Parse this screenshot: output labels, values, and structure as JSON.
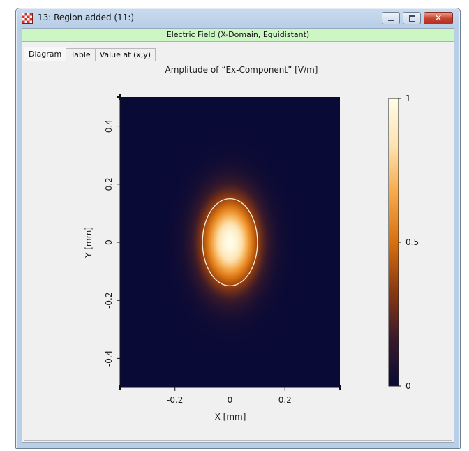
{
  "window": {
    "title": "13: Region added (11:)",
    "controls": {
      "minimize": "minimize-icon",
      "maximize": "maximize-icon",
      "close": "close-icon"
    },
    "close_glyph": "✕"
  },
  "header": {
    "text": "Electric Field (X-Domain, Equidistant)",
    "color": "#ccf7c4"
  },
  "tabs": [
    {
      "label": "Diagram",
      "active": true
    },
    {
      "label": "Table",
      "active": false
    },
    {
      "label": "Value at (x,y)",
      "active": false
    }
  ],
  "chart_data": {
    "type": "heatmap",
    "title": "Amplitude of “Ex-Component”  [V/m]",
    "xlabel": "X [mm]",
    "ylabel": "Y [mm]",
    "xlim": [
      -0.4,
      0.4
    ],
    "ylim": [
      -0.5,
      0.5
    ],
    "xticks": [
      {
        "value": -0.2,
        "label": "-0.2"
      },
      {
        "value": 0,
        "label": "0"
      },
      {
        "value": 0.2,
        "label": "0.2"
      }
    ],
    "yticks": [
      {
        "value": 0.4,
        "label": "0.4"
      },
      {
        "value": 0.2,
        "label": "0.2"
      },
      {
        "value": 0,
        "label": "0"
      },
      {
        "value": -0.2,
        "label": "-0.2"
      },
      {
        "value": -0.4,
        "label": "-0.4"
      }
    ],
    "colorbar": {
      "min": 0,
      "max": 1,
      "ticks": [
        {
          "value": 1,
          "label": "1"
        },
        {
          "value": 0.5,
          "label": "0.5"
        },
        {
          "value": 0,
          "label": "0"
        }
      ],
      "colormap": [
        "#0a0a36",
        "#3a1a2a",
        "#8a3a12",
        "#d77010",
        "#f5a848",
        "#fde2b0",
        "#fffde8"
      ]
    },
    "field": {
      "center": [
        0,
        0
      ],
      "sigma_x": 0.1,
      "sigma_y": 0.15
    },
    "region_outline": {
      "shape": "ellipse",
      "center": [
        0,
        0
      ],
      "rx": 0.1,
      "ry": 0.15,
      "color": "#f4ecd8"
    }
  }
}
